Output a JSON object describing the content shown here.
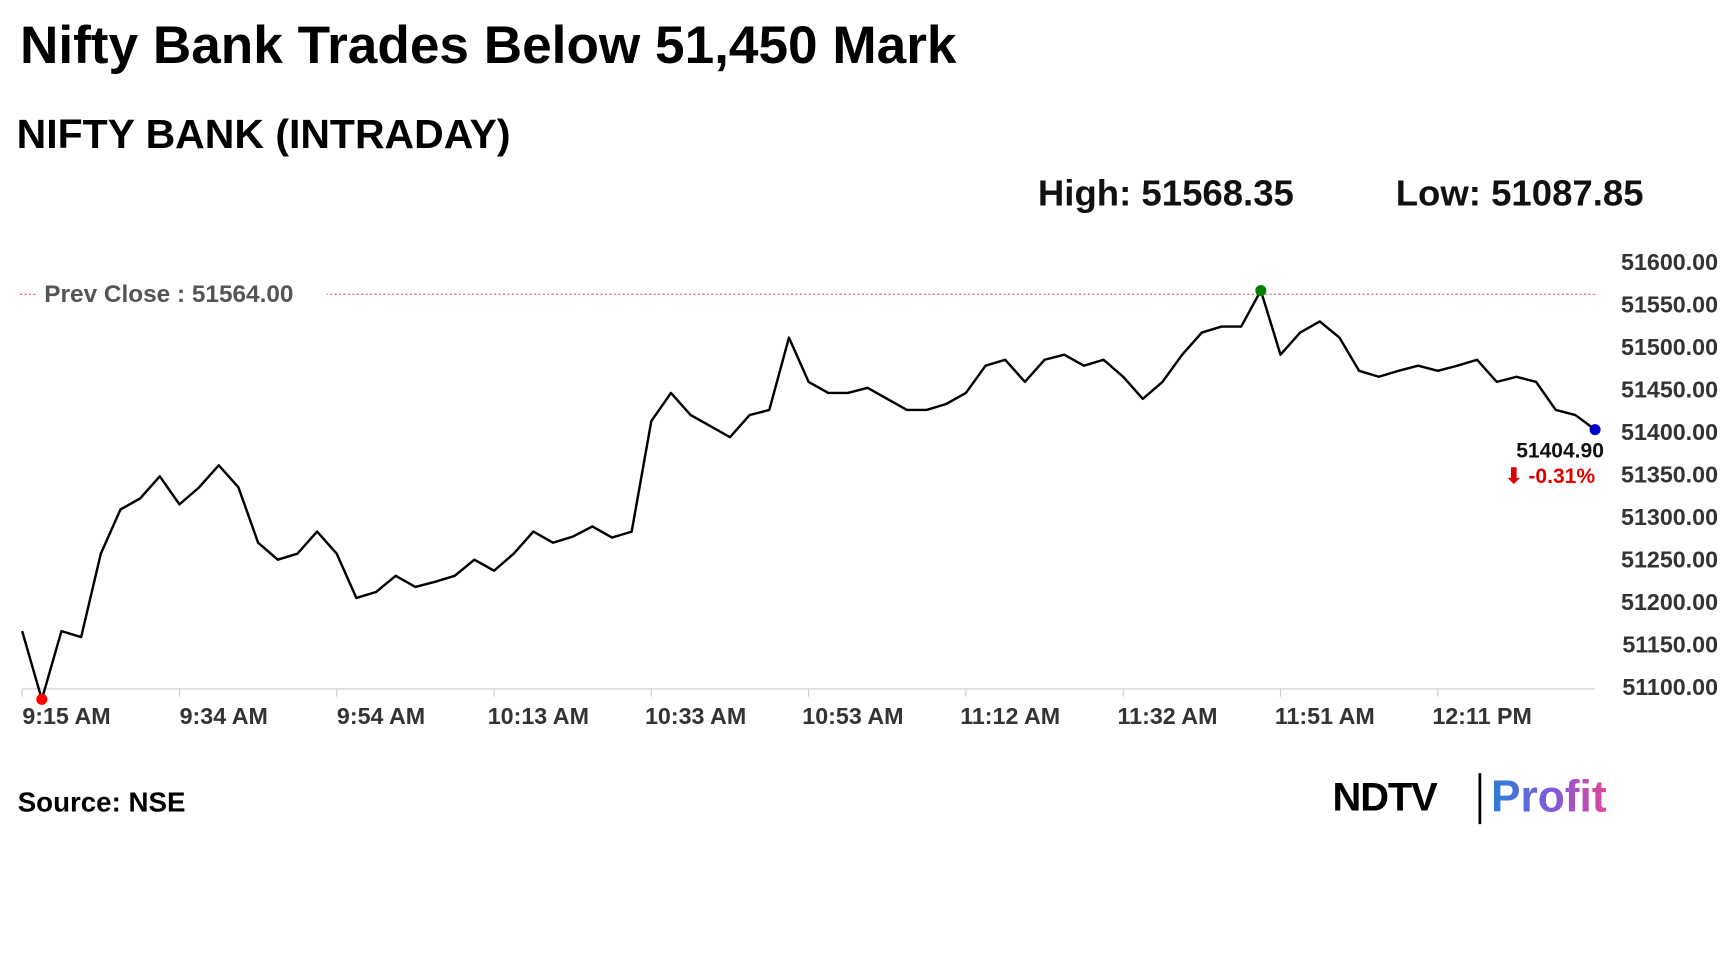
{
  "chart_data": {
    "type": "line",
    "title": "Nifty Bank Trades Below 51,450 Mark",
    "subtitle": "NIFTY BANK (INTRADAY)",
    "high_label": "High: 51568.35",
    "low_label": "Low: 51087.85",
    "source": "Source: NSE",
    "brand": {
      "left": "NDTV",
      "right": "Profit"
    },
    "color": "#000000",
    "categories": [
      "9:15 AM",
      null,
      null,
      null,
      null,
      null,
      null,
      null,
      "9:34 AM",
      null,
      null,
      null,
      null,
      null,
      null,
      null,
      "9:54 AM",
      null,
      null,
      null,
      null,
      null,
      null,
      null,
      "10:13 AM",
      null,
      null,
      null,
      null,
      null,
      null,
      null,
      "10:33 AM",
      null,
      null,
      null,
      null,
      null,
      null,
      null,
      "10:53 AM",
      null,
      null,
      null,
      null,
      null,
      null,
      null,
      "11:12 AM",
      null,
      null,
      null,
      null,
      null,
      null,
      null,
      "11:32 AM",
      null,
      null,
      null,
      null,
      null,
      null,
      null,
      "11:51 AM",
      null,
      null,
      null,
      null,
      null,
      null,
      null,
      "12:11 PM",
      null,
      null,
      null,
      null,
      null,
      null,
      null,
      null
    ],
    "values": [
      51168,
      51087.85,
      51168,
      51161,
      51259,
      51311,
      51324,
      51350,
      51317,
      51337,
      51363,
      51337,
      51272,
      51252,
      51259,
      51285,
      51259,
      51207,
      51214,
      51233,
      51220,
      51226,
      51233,
      51252,
      51239,
      51259,
      51285,
      51272,
      51279,
      51291,
      51278,
      51285,
      51415,
      51448,
      51422,
      51409,
      51396,
      51422,
      51428,
      51513,
      51461,
      51448,
      51448,
      51454,
      51441,
      51428,
      51428,
      51435,
      51448,
      51480,
      51487,
      51461,
      51487,
      51493,
      51480,
      51487,
      51467,
      51441,
      51461,
      51493,
      51519,
      51526,
      51526,
      51568.35,
      51493,
      51519,
      51532,
      51513,
      51474,
      51467,
      51474,
      51480,
      51474,
      51480,
      51487,
      51461,
      51467,
      51461,
      51428,
      51422,
      51404.9
    ],
    "value_labels": [
      null,
      null,
      null,
      null,
      null,
      null,
      null,
      null,
      null,
      null,
      null,
      null,
      null,
      null,
      null,
      null,
      null,
      null,
      null,
      null,
      null,
      null,
      null,
      null,
      null,
      null,
      null,
      null,
      null,
      null,
      null,
      null,
      null,
      null,
      null,
      null,
      null,
      null,
      null,
      null,
      null,
      null,
      null,
      null,
      null,
      null,
      null,
      null,
      null,
      null,
      null,
      null,
      null,
      null,
      null,
      null,
      null,
      null,
      null,
      null,
      null,
      null,
      null,
      null,
      null,
      null,
      null,
      null,
      null,
      null,
      null,
      null,
      null,
      null,
      null,
      null,
      null,
      null,
      null,
      null,
      "51404.90"
    ],
    "change": {
      "value": -0.31,
      "label": "⬇ -0.31%"
    },
    "prev_close": {
      "value": 51564,
      "label": "Prev Close : 51564.00",
      "color": "#d9534f"
    },
    "low_marker_color": "#ff0000",
    "high_marker_color": "#008000",
    "last_marker_color": "#0000cc",
    "ylim": [
      51100,
      51600
    ],
    "yticks": [
      {
        "value": 51100,
        "label": "51100.00"
      },
      {
        "value": 51150,
        "label": "51150.00"
      },
      {
        "value": 51200,
        "label": "51200.00"
      },
      {
        "value": 51250,
        "label": "51250.00"
      },
      {
        "value": 51300,
        "label": "51300.00"
      },
      {
        "value": 51350,
        "label": "51350.00"
      },
      {
        "value": 51400,
        "label": "51400.00"
      },
      {
        "value": 51450,
        "label": "51450.00"
      },
      {
        "value": 51500,
        "label": "51500.00"
      },
      {
        "value": 51550,
        "label": "51550.00"
      },
      {
        "value": 51600,
        "label": "51600.00"
      }
    ]
  }
}
